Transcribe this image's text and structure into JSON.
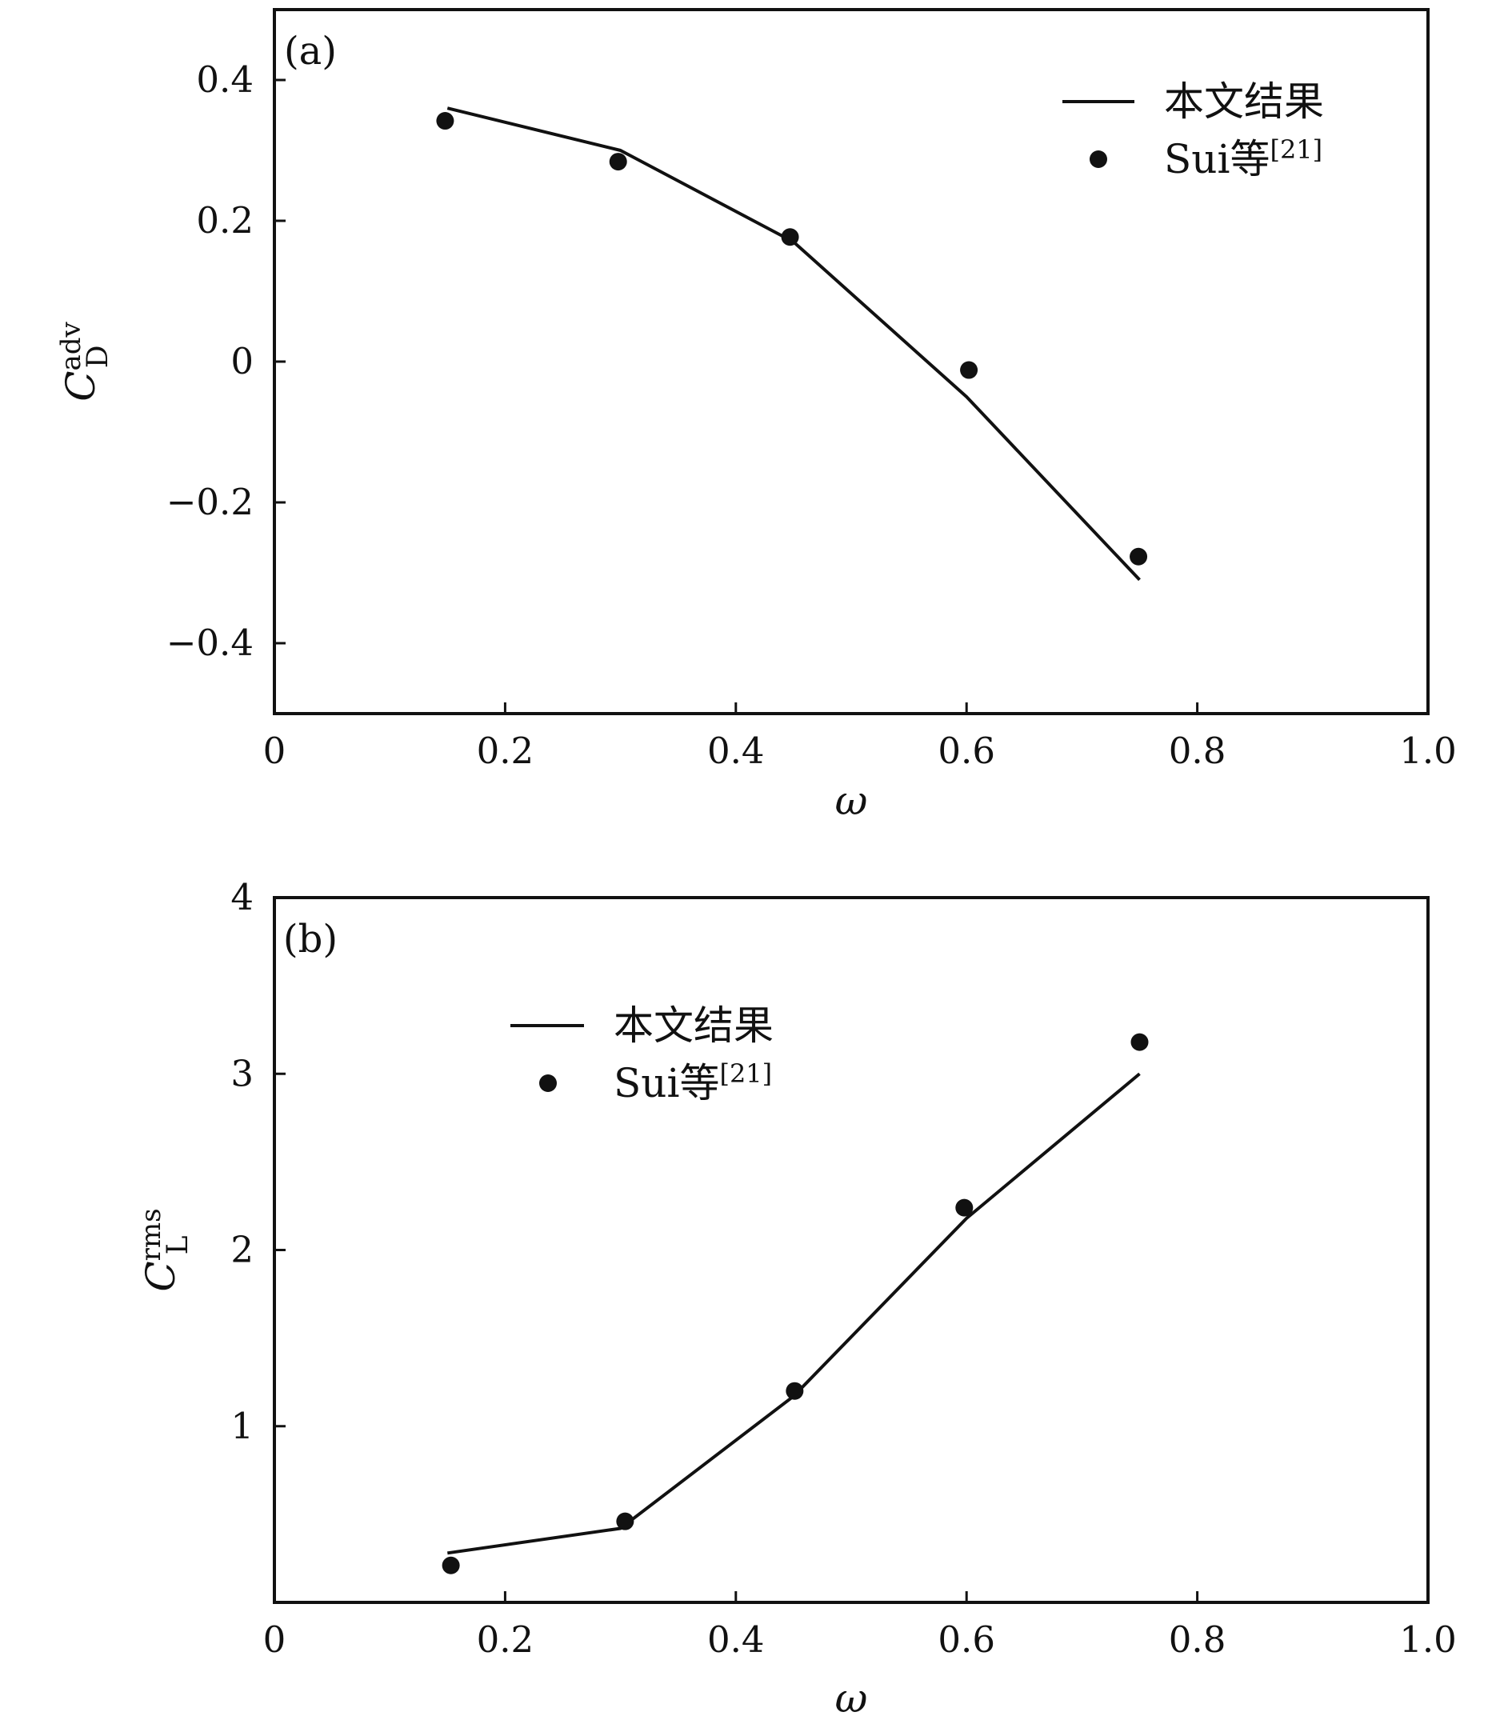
{
  "chart_data": [
    {
      "type": "line",
      "panel_label": "(a)",
      "xlabel": "ω",
      "ylabel": {
        "base": "C",
        "sup": "adv",
        "sub": "D"
      },
      "xlim": [
        0,
        1.0
      ],
      "ylim": [
        -0.5,
        0.5
      ],
      "xticks": [
        0,
        0.2,
        0.4,
        0.6,
        0.8,
        1.0
      ],
      "xtick_labels": [
        "0",
        "0.2",
        "0.4",
        "0.6",
        "0.8",
        "1.0"
      ],
      "yticks": [
        -0.4,
        -0.2,
        0,
        0.2,
        0.4
      ],
      "ytick_labels": [
        "−0.4",
        "−0.2",
        "0",
        "0.2",
        "0.4"
      ],
      "grid": false,
      "legend_position": "top-right",
      "series": [
        {
          "name": "本文结果",
          "style": "line",
          "color": "#111111",
          "x": [
            0.15,
            0.3,
            0.45,
            0.6,
            0.75
          ],
          "y": [
            0.36,
            0.3,
            0.17,
            -0.05,
            -0.31
          ]
        },
        {
          "name": "Sui等[21]",
          "legend_main": "Sui等",
          "legend_sup": "[21]",
          "style": "scatter",
          "color": "#111111",
          "x": [
            0.148,
            0.298,
            0.447,
            0.602,
            0.749
          ],
          "y": [
            0.342,
            0.284,
            0.177,
            -0.012,
            -0.277
          ]
        }
      ]
    },
    {
      "type": "line",
      "panel_label": "(b)",
      "xlabel": "ω",
      "ylabel": {
        "base": "C",
        "sup": "rms",
        "sub": "L"
      },
      "xlim": [
        0,
        1.0
      ],
      "ylim": [
        0,
        4
      ],
      "xticks": [
        0,
        0.2,
        0.4,
        0.6,
        0.8,
        1.0
      ],
      "xtick_labels": [
        "0",
        "0.2",
        "0.4",
        "0.6",
        "0.8",
        "1.0"
      ],
      "yticks": [
        1,
        2,
        3,
        4
      ],
      "ytick_labels": [
        "1",
        "2",
        "3",
        "4"
      ],
      "grid": false,
      "legend_position": "upper-left",
      "series": [
        {
          "name": "本文结果",
          "style": "line",
          "color": "#111111",
          "x": [
            0.15,
            0.3,
            0.45,
            0.6,
            0.75
          ],
          "y": [
            0.28,
            0.42,
            1.17,
            2.18,
            3.0
          ]
        },
        {
          "name": "Sui等[21]",
          "legend_main": "Sui等",
          "legend_sup": "[21]",
          "style": "scatter",
          "color": "#111111",
          "x": [
            0.153,
            0.304,
            0.451,
            0.598,
            0.75
          ],
          "y": [
            0.21,
            0.46,
            1.2,
            2.24,
            3.18
          ]
        }
      ]
    }
  ]
}
